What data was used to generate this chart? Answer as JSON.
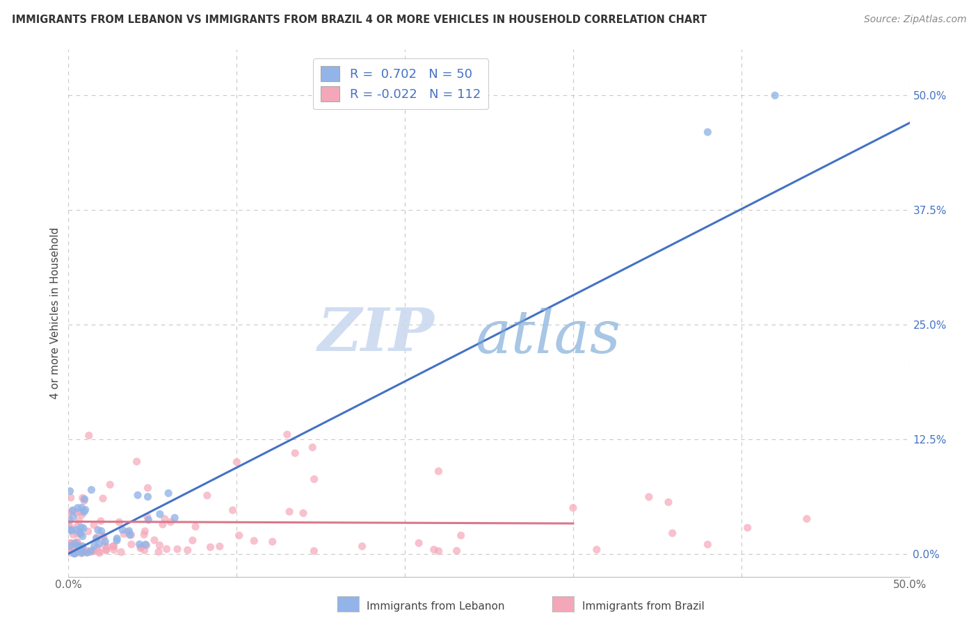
{
  "title": "IMMIGRANTS FROM LEBANON VS IMMIGRANTS FROM BRAZIL 4 OR MORE VEHICLES IN HOUSEHOLD CORRELATION CHART",
  "source": "Source: ZipAtlas.com",
  "ylabel": "4 or more Vehicles in Household",
  "xlim": [
    0.0,
    0.5
  ],
  "ylim": [
    -0.025,
    0.55
  ],
  "xticks": [
    0.0,
    0.1,
    0.2,
    0.3,
    0.4,
    0.5
  ],
  "xticklabels": [
    "0.0%",
    "",
    "",
    "",
    "",
    "50.0%"
  ],
  "yticks_right": [
    0.0,
    0.125,
    0.25,
    0.375,
    0.5
  ],
  "yticklabels_right": [
    "0.0%",
    "12.5%",
    "25.0%",
    "37.5%",
    "50.0%"
  ],
  "legend_R1": "0.702",
  "legend_N1": "50",
  "legend_R2": "-0.022",
  "legend_N2": "112",
  "color_lebanon": "#92b4e8",
  "color_brazil": "#f4a7b9",
  "color_line_lebanon": "#4472c4",
  "color_line_brazil": "#d9788a",
  "legend_label1": "Immigrants from Lebanon",
  "legend_label2": "Immigrants from Brazil",
  "watermark_zip": "ZIP",
  "watermark_atlas": "atlas",
  "background_color": "#ffffff",
  "grid_color": "#c8c8c8",
  "leb_line_x0": 0.0,
  "leb_line_y0": 0.0,
  "leb_line_x1": 0.5,
  "leb_line_y1": 0.47,
  "bra_line_x0": 0.0,
  "bra_line_y0": 0.035,
  "bra_line_x1": 0.3,
  "bra_line_y1": 0.033
}
